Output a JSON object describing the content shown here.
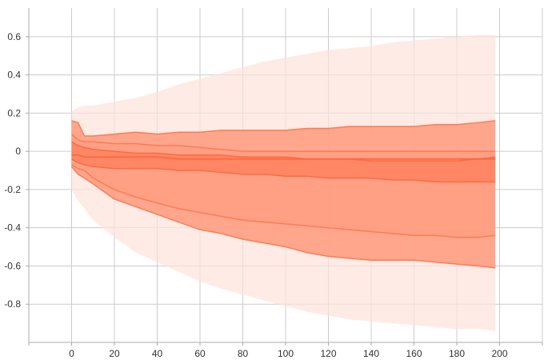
{
  "chart_data": {
    "type": "area",
    "title": "",
    "xlabel": "",
    "ylabel": "",
    "xlim": [
      -20,
      220
    ],
    "ylim": [
      -1.0,
      0.75
    ],
    "grid": true,
    "legend": "none",
    "x_ticks": [
      0,
      20,
      40,
      60,
      80,
      100,
      120,
      140,
      160,
      180,
      200
    ],
    "y_ticks": [
      0.6,
      0.4,
      0.2,
      0,
      -0.2,
      -0.4,
      -0.6,
      -0.8
    ],
    "x_tick_labels": [
      "0",
      "20",
      "40",
      "60",
      "80",
      "100",
      "120",
      "140",
      "160",
      "180",
      "200"
    ],
    "y_tick_labels": [
      "0.6",
      "0.4",
      "0.2",
      "0",
      "-0.2",
      "-0.4",
      "-0.6",
      "-0.8"
    ],
    "x": [
      0,
      3,
      6,
      10,
      20,
      30,
      40,
      50,
      60,
      70,
      80,
      90,
      100,
      110,
      120,
      130,
      140,
      150,
      160,
      170,
      180,
      190,
      198
    ],
    "bands": [
      {
        "color": "#fde2da",
        "opacity": 0.7,
        "upper": [
          0.21,
          0.23,
          0.24,
          0.24,
          0.26,
          0.28,
          0.31,
          0.35,
          0.38,
          0.41,
          0.44,
          0.47,
          0.49,
          0.51,
          0.53,
          0.54,
          0.55,
          0.57,
          0.58,
          0.59,
          0.6,
          0.61,
          0.61
        ],
        "lower": [
          -0.2,
          -0.26,
          -0.3,
          -0.36,
          -0.45,
          -0.53,
          -0.58,
          -0.63,
          -0.68,
          -0.72,
          -0.75,
          -0.78,
          -0.81,
          -0.84,
          -0.86,
          -0.88,
          -0.89,
          -0.9,
          -0.91,
          -0.92,
          -0.93,
          -0.93,
          -0.94
        ]
      },
      {
        "color": "#ff9a7d",
        "opacity": 0.85,
        "stroke": "#ff7a55",
        "upper": [
          0.16,
          0.15,
          0.08,
          0.08,
          0.09,
          0.1,
          0.09,
          0.1,
          0.1,
          0.11,
          0.11,
          0.11,
          0.11,
          0.12,
          0.12,
          0.13,
          0.13,
          0.13,
          0.13,
          0.14,
          0.14,
          0.15,
          0.16
        ],
        "lower": [
          -0.08,
          -0.12,
          -0.14,
          -0.17,
          -0.25,
          -0.29,
          -0.33,
          -0.37,
          -0.41,
          -0.43,
          -0.46,
          -0.48,
          -0.5,
          -0.53,
          -0.55,
          -0.56,
          -0.57,
          -0.57,
          -0.57,
          -0.58,
          -0.59,
          -0.6,
          -0.61
        ]
      },
      {
        "color": "#ff9a7d",
        "opacity": 0.55,
        "stroke": "#ff7a55",
        "upper": [
          0.09,
          0.06,
          0.05,
          0.05,
          0.04,
          0.04,
          0.03,
          0.03,
          0.02,
          0.01,
          0.0,
          0.0,
          0.0,
          0.0,
          0.0,
          0.0,
          0.0,
          0.0,
          0.0,
          0.0,
          0.0,
          0.0,
          0.0
        ],
        "lower": [
          -0.07,
          -0.09,
          -0.1,
          -0.14,
          -0.2,
          -0.24,
          -0.27,
          -0.3,
          -0.32,
          -0.34,
          -0.36,
          -0.37,
          -0.38,
          -0.39,
          -0.4,
          -0.41,
          -0.42,
          -0.43,
          -0.44,
          -0.44,
          -0.45,
          -0.45,
          -0.44
        ]
      },
      {
        "color": "#ff7f5c",
        "opacity": 0.75,
        "stroke": "#ff6a40",
        "upper": [
          0.05,
          0.03,
          0.02,
          0.01,
          0.0,
          -0.01,
          -0.01,
          -0.02,
          -0.02,
          -0.02,
          -0.03,
          -0.03,
          -0.03,
          -0.04,
          -0.04,
          -0.04,
          -0.05,
          -0.05,
          -0.05,
          -0.05,
          -0.05,
          -0.04,
          -0.03
        ],
        "lower": [
          -0.04,
          -0.06,
          -0.07,
          -0.08,
          -0.09,
          -0.09,
          -0.09,
          -0.1,
          -0.1,
          -0.11,
          -0.12,
          -0.12,
          -0.13,
          -0.13,
          -0.14,
          -0.14,
          -0.14,
          -0.15,
          -0.15,
          -0.16,
          -0.16,
          -0.16,
          -0.16
        ]
      }
    ],
    "median": [
      -0.02,
      -0.02,
      -0.03,
      -0.03,
      -0.03,
      -0.03,
      -0.03,
      -0.04,
      -0.04,
      -0.04,
      -0.04,
      -0.04,
      -0.04,
      -0.04,
      -0.04,
      -0.04,
      -0.04,
      -0.04,
      -0.04,
      -0.04,
      -0.04,
      -0.04,
      -0.04
    ],
    "median_color": "#ff6a40"
  }
}
